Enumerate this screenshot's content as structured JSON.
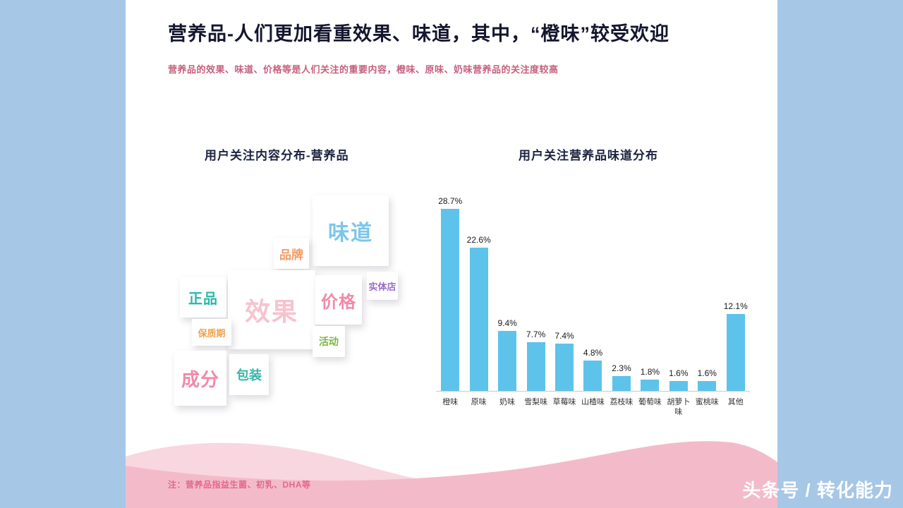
{
  "slide": {
    "title": "营养品-人们更加看重效果、味道，其中，“橙味”较受欢迎",
    "subtitle": "营养品的效果、味道、价格等是人们关注的重要内容，橙味、原味、奶味营养品的关注度较高",
    "footnote": "注：营养品指益生菌、初乳、DHA等",
    "watermark": "头条号 / 转化能力"
  },
  "word_cloud": {
    "title": "用户关注内容分布-营养品",
    "items": [
      {
        "label": "味道",
        "color": "#7cc6e9"
      },
      {
        "label": "品牌",
        "color": "#f59a66"
      },
      {
        "label": "正品",
        "color": "#2ab7a9"
      },
      {
        "label": "效果",
        "color": "#f6c3d0"
      },
      {
        "label": "价格",
        "color": "#f08aa8"
      },
      {
        "label": "实体店",
        "color": "#9a6bd0"
      },
      {
        "label": "保质期",
        "color": "#f0a24e"
      },
      {
        "label": "活动",
        "color": "#7cb83e"
      },
      {
        "label": "成分",
        "color": "#f08aa8"
      },
      {
        "label": "包装",
        "color": "#35b5aa"
      }
    ]
  },
  "chart_data": {
    "type": "bar",
    "title": "用户关注营养品味道分布",
    "categories": [
      "橙味",
      "原味",
      "奶味",
      "雪梨味",
      "草莓味",
      "山楂味",
      "荔枝味",
      "葡萄味",
      "胡萝卜味",
      "蜜桃味",
      "其他"
    ],
    "values": [
      28.7,
      22.6,
      9.4,
      7.7,
      7.4,
      4.8,
      2.3,
      1.8,
      1.6,
      1.6,
      12.1
    ],
    "value_labels": [
      "28.7%",
      "22.6%",
      "9.4%",
      "7.7%",
      "7.4%",
      "4.8%",
      "2.3%",
      "1.8%",
      "1.6%",
      "1.6%",
      "12.1%"
    ],
    "bar_color": "#5ec3ea",
    "xlabel": "",
    "ylabel": "",
    "ylim": [
      0,
      30
    ],
    "grid": false,
    "legend": "none",
    "value_label_position": "above-bar"
  },
  "colors": {
    "background": "#a6c7e6",
    "panel": "#ffffff",
    "wave_main": "#f3bbc9",
    "wave_light": "#f9d7e0",
    "title": "#14162e",
    "subtitle": "#c6607e",
    "bar": "#5ec3ea"
  }
}
